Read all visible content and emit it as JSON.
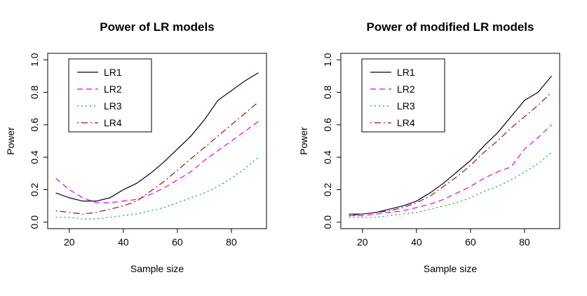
{
  "figure": {
    "background": "#ffffff",
    "axis_color": "#000000"
  },
  "chart_data": [
    {
      "type": "line",
      "title": "Power of LR models",
      "xlabel": "Sample size",
      "ylabel": "Power",
      "xlim": [
        15,
        90
      ],
      "ylim": [
        0,
        1
      ],
      "xticks": [
        20,
        40,
        60,
        80
      ],
      "yticks": [
        0.0,
        0.2,
        0.4,
        0.6,
        0.8,
        1.0
      ],
      "grid": false,
      "legend_position": "top-left",
      "x": [
        15,
        20,
        25,
        30,
        35,
        40,
        45,
        50,
        55,
        60,
        65,
        70,
        75,
        80,
        85,
        90
      ],
      "series": [
        {
          "name": "LR1",
          "color": "#000033",
          "style": "solid",
          "values": [
            0.18,
            0.15,
            0.13,
            0.13,
            0.15,
            0.2,
            0.24,
            0.3,
            0.37,
            0.45,
            0.53,
            0.63,
            0.75,
            0.81,
            0.87,
            0.92
          ]
        },
        {
          "name": "LR2",
          "color": "#e600e6",
          "style": "dashed",
          "values": [
            0.27,
            0.2,
            0.15,
            0.12,
            0.12,
            0.13,
            0.14,
            0.17,
            0.21,
            0.26,
            0.31,
            0.38,
            0.44,
            0.5,
            0.56,
            0.62
          ]
        },
        {
          "name": "LR3",
          "color": "#00a33c",
          "style": "dotted",
          "values": [
            0.03,
            0.03,
            0.02,
            0.02,
            0.03,
            0.04,
            0.05,
            0.07,
            0.09,
            0.12,
            0.15,
            0.18,
            0.22,
            0.27,
            0.33,
            0.4
          ]
        },
        {
          "name": "LR4",
          "color": "#9b1111",
          "style": "dashdot",
          "values": [
            0.07,
            0.06,
            0.05,
            0.06,
            0.08,
            0.1,
            0.13,
            0.19,
            0.25,
            0.32,
            0.39,
            0.46,
            0.53,
            0.6,
            0.67,
            0.74
          ]
        }
      ]
    },
    {
      "type": "line",
      "title": "Power of modified LR models",
      "xlabel": "Sample size",
      "ylabel": "Power",
      "xlim": [
        15,
        90
      ],
      "ylim": [
        0,
        1
      ],
      "xticks": [
        20,
        40,
        60,
        80
      ],
      "yticks": [
        0.0,
        0.2,
        0.4,
        0.6,
        0.8,
        1.0
      ],
      "grid": false,
      "legend_position": "top-left",
      "x": [
        15,
        20,
        25,
        30,
        35,
        40,
        45,
        50,
        55,
        60,
        65,
        70,
        75,
        80,
        85,
        90
      ],
      "series": [
        {
          "name": "LR1",
          "color": "#000033",
          "style": "solid",
          "values": [
            0.05,
            0.05,
            0.06,
            0.08,
            0.1,
            0.13,
            0.18,
            0.24,
            0.31,
            0.38,
            0.47,
            0.55,
            0.65,
            0.75,
            0.8,
            0.9
          ]
        },
        {
          "name": "LR2",
          "color": "#e600e6",
          "style": "dashed",
          "values": [
            0.04,
            0.04,
            0.05,
            0.06,
            0.07,
            0.09,
            0.11,
            0.14,
            0.18,
            0.22,
            0.27,
            0.31,
            0.34,
            0.45,
            0.52,
            0.6
          ]
        },
        {
          "name": "LR3",
          "color": "#00a33c",
          "style": "dotted",
          "values": [
            0.03,
            0.03,
            0.03,
            0.04,
            0.05,
            0.06,
            0.08,
            0.1,
            0.12,
            0.15,
            0.19,
            0.22,
            0.26,
            0.31,
            0.36,
            0.43
          ]
        },
        {
          "name": "LR4",
          "color": "#9b1111",
          "style": "dashdot",
          "values": [
            0.04,
            0.05,
            0.06,
            0.07,
            0.09,
            0.12,
            0.16,
            0.22,
            0.28,
            0.35,
            0.43,
            0.5,
            0.58,
            0.65,
            0.72,
            0.8
          ]
        }
      ]
    }
  ]
}
